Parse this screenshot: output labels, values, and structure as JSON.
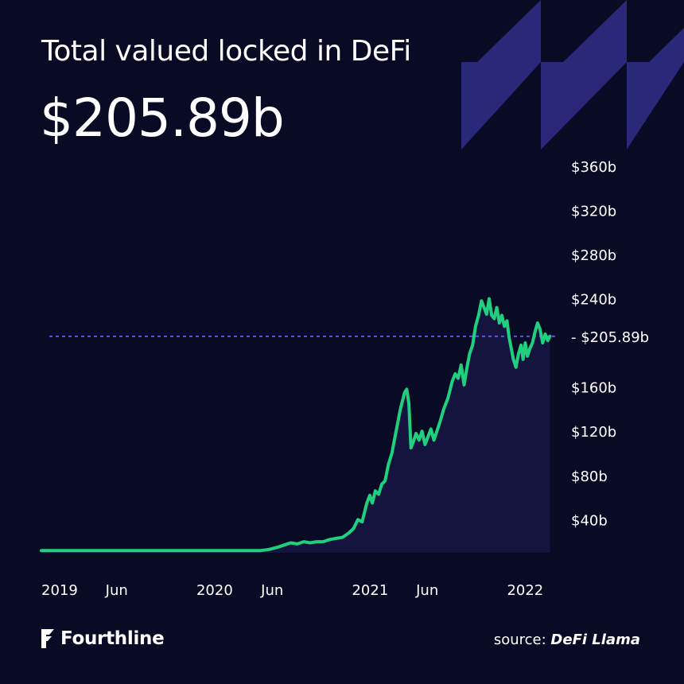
{
  "header": {
    "title": "Total valued locked in DeFi",
    "current_value": "$205.89b"
  },
  "footer": {
    "brand": "Fourthline",
    "source_prefix": "source:",
    "source_name": "DeFi Llama"
  },
  "colors": {
    "background": "#090A24",
    "line": "#1FD17F",
    "area": "#15143E",
    "reference_line": "#5B55E0",
    "decoration": "#2A2878",
    "text": "#FFFFFF"
  },
  "icons": {
    "brand_logo": "fourthline-logo-icon"
  },
  "chart_data": {
    "type": "area",
    "title": "Total valued locked in DeFi",
    "y_ticks": [
      40,
      80,
      120,
      160,
      240,
      280,
      320,
      360
    ],
    "y_tick_labels": [
      "$40b",
      "$80b",
      "$120b",
      "$160b",
      "$240b",
      "$280b",
      "$320b",
      "$360b"
    ],
    "ylim": [
      10,
      370
    ],
    "x_ticks": [
      "2019-01-01",
      "2019-06-01",
      "2020-01-01",
      "2020-06-01",
      "2021-01-01",
      "2021-06-01",
      "2022-01-01"
    ],
    "x_tick_labels": [
      "2019",
      "Jun",
      "2020",
      "Jun",
      "2021",
      "Jun",
      "2022"
    ],
    "xlim": [
      "2019-01-01",
      "2022-04-15"
    ],
    "reference_line": {
      "value": 205.89,
      "label": "- $205.89b"
    },
    "grid": false,
    "series": [
      {
        "values": [
          [
            "2019-01-01",
            12
          ],
          [
            "2019-06-01",
            12
          ],
          [
            "2020-01-01",
            12
          ],
          [
            "2020-06-01",
            12
          ],
          [
            "2020-06-20",
            13
          ],
          [
            "2020-07-10",
            15
          ],
          [
            "2020-07-25",
            17
          ],
          [
            "2020-08-10",
            19
          ],
          [
            "2020-08-25",
            18
          ],
          [
            "2020-09-10",
            20
          ],
          [
            "2020-09-25",
            19
          ],
          [
            "2020-10-10",
            20
          ],
          [
            "2020-10-25",
            20
          ],
          [
            "2020-11-10",
            22
          ],
          [
            "2020-11-25",
            23
          ],
          [
            "2020-12-10",
            24
          ],
          [
            "2020-12-25",
            28
          ],
          [
            "2021-01-05",
            32
          ],
          [
            "2021-01-15",
            40
          ],
          [
            "2021-01-25",
            38
          ],
          [
            "2021-02-05",
            55
          ],
          [
            "2021-02-12",
            62
          ],
          [
            "2021-02-18",
            55
          ],
          [
            "2021-02-25",
            66
          ],
          [
            "2021-03-05",
            63
          ],
          [
            "2021-03-12",
            72
          ],
          [
            "2021-03-20",
            75
          ],
          [
            "2021-03-28",
            90
          ],
          [
            "2021-04-05",
            100
          ],
          [
            "2021-04-15",
            120
          ],
          [
            "2021-04-25",
            140
          ],
          [
            "2021-05-05",
            155
          ],
          [
            "2021-05-10",
            158
          ],
          [
            "2021-05-15",
            145
          ],
          [
            "2021-05-20",
            105
          ],
          [
            "2021-05-25",
            110
          ],
          [
            "2021-06-01",
            118
          ],
          [
            "2021-06-08",
            112
          ],
          [
            "2021-06-15",
            120
          ],
          [
            "2021-06-22",
            108
          ],
          [
            "2021-06-29",
            115
          ],
          [
            "2021-07-06",
            122
          ],
          [
            "2021-07-13",
            112
          ],
          [
            "2021-07-20",
            120
          ],
          [
            "2021-07-27",
            128
          ],
          [
            "2021-08-05",
            140
          ],
          [
            "2021-08-15",
            150
          ],
          [
            "2021-08-25",
            165
          ],
          [
            "2021-09-01",
            172
          ],
          [
            "2021-09-08",
            168
          ],
          [
            "2021-09-15",
            180
          ],
          [
            "2021-09-22",
            162
          ],
          [
            "2021-09-29",
            178
          ],
          [
            "2021-10-05",
            190
          ],
          [
            "2021-10-12",
            198
          ],
          [
            "2021-10-19",
            215
          ],
          [
            "2021-10-26",
            225
          ],
          [
            "2021-11-02",
            238
          ],
          [
            "2021-11-08",
            232
          ],
          [
            "2021-11-14",
            226
          ],
          [
            "2021-11-20",
            240
          ],
          [
            "2021-11-26",
            225
          ],
          [
            "2021-12-02",
            222
          ],
          [
            "2021-12-08",
            232
          ],
          [
            "2021-12-14",
            218
          ],
          [
            "2021-12-20",
            225
          ],
          [
            "2021-12-26",
            215
          ],
          [
            "2022-01-01",
            220
          ],
          [
            "2022-01-06",
            205
          ],
          [
            "2022-01-11",
            195
          ],
          [
            "2022-01-16",
            185
          ],
          [
            "2022-01-22",
            178
          ],
          [
            "2022-01-28",
            190
          ],
          [
            "2022-02-03",
            198
          ],
          [
            "2022-02-08",
            185
          ],
          [
            "2022-02-13",
            200
          ],
          [
            "2022-02-18",
            188
          ],
          [
            "2022-02-24",
            195
          ],
          [
            "2022-03-02",
            200
          ],
          [
            "2022-03-08",
            210
          ],
          [
            "2022-03-14",
            218
          ],
          [
            "2022-03-20",
            212
          ],
          [
            "2022-03-26",
            200
          ],
          [
            "2022-04-01",
            208
          ],
          [
            "2022-04-07",
            202
          ],
          [
            "2022-04-12",
            206
          ]
        ]
      }
    ]
  }
}
